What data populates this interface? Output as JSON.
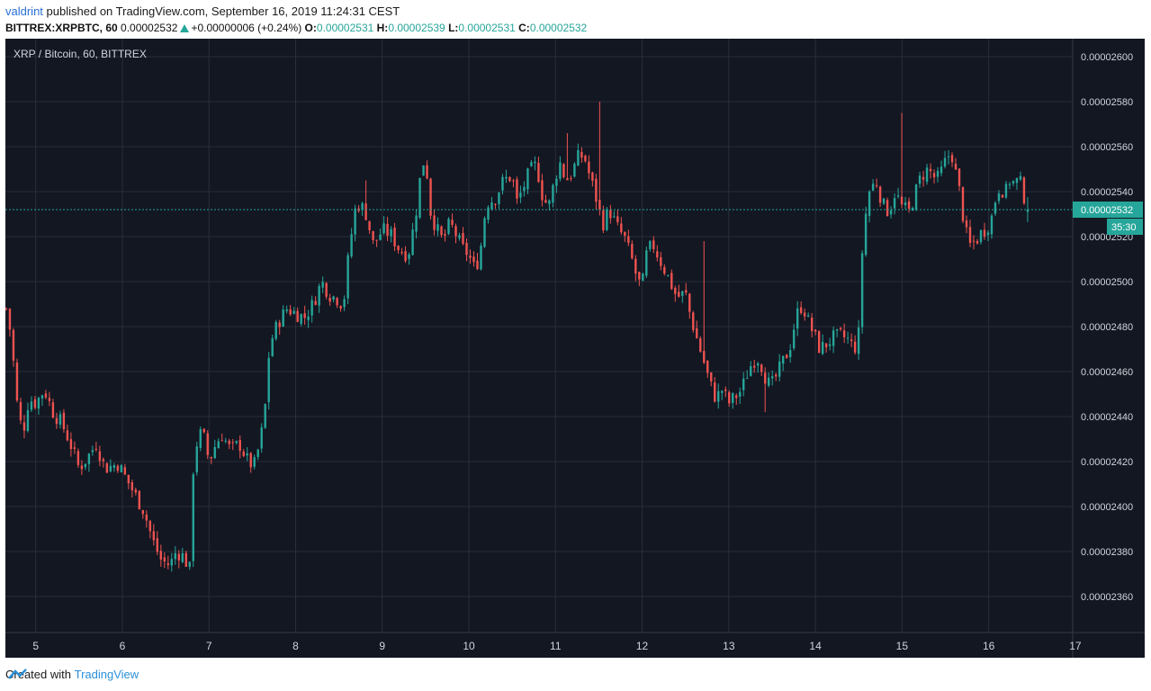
{
  "header": {
    "author": "valdrint",
    "published_text": "published on TradingView.com, September 16, 2019 11:24:31 CEST",
    "symbol_line": "BITTREX:XRPBTC, 60",
    "last_price": "0.00002532",
    "change": "+0.00000006 (+0.24%)",
    "o_label": "O:",
    "o_value": "0.00002531",
    "h_label": "H:",
    "h_value": "0.00002539",
    "l_label": "L:",
    "l_value": "0.00002531",
    "c_label": "C:",
    "c_value": "0.00002532"
  },
  "footer": {
    "prefix": "Created with",
    "brand": "TradingView"
  },
  "colors": {
    "background": "#131722",
    "up": "#26a69a",
    "down": "#ef5350",
    "grid": "#2a2e39",
    "axis_text": "#d1d4dc"
  },
  "chart_data": {
    "type": "candlestick",
    "title": "XRP / Bitcoin, 60, BITTREX",
    "x_ticks": [
      "5",
      "6",
      "7",
      "8",
      "9",
      "10",
      "11",
      "12",
      "13",
      "14",
      "15",
      "16",
      "17"
    ],
    "x_tick_values": [
      5,
      6,
      7,
      8,
      9,
      10,
      11,
      12,
      13,
      14,
      15,
      16,
      17
    ],
    "xlim": [
      4.65,
      16.97
    ],
    "y_ticks": [
      "0.00002360",
      "0.00002380",
      "0.00002400",
      "0.00002420",
      "0.00002440",
      "0.00002460",
      "0.00002480",
      "0.00002500",
      "0.00002520",
      "0.00002540",
      "0.00002560",
      "0.00002580",
      "0.00002600"
    ],
    "y_tick_values": [
      2360,
      2380,
      2400,
      2420,
      2440,
      2460,
      2480,
      2500,
      2520,
      2540,
      2560,
      2580,
      2600
    ],
    "y_unit_note": "values are in units of 1e-8 BTC (satoshi)",
    "ylim": [
      2344,
      2608
    ],
    "current_price": 2532,
    "current_price_label": "0.00002532",
    "countdown_label": "35:30",
    "grid": true,
    "anchors": [
      [
        4.66,
        2488
      ],
      [
        4.72,
        2475
      ],
      [
        4.78,
        2447
      ],
      [
        4.85,
        2432
      ],
      [
        4.92,
        2448
      ],
      [
        5.0,
        2446
      ],
      [
        5.1,
        2452
      ],
      [
        5.2,
        2442
      ],
      [
        5.3,
        2437
      ],
      [
        5.4,
        2428
      ],
      [
        5.5,
        2417
      ],
      [
        5.6,
        2422
      ],
      [
        5.7,
        2428
      ],
      [
        5.8,
        2417
      ],
      [
        5.95,
        2419
      ],
      [
        6.05,
        2412
      ],
      [
        6.15,
        2405
      ],
      [
        6.25,
        2398
      ],
      [
        6.35,
        2385
      ],
      [
        6.45,
        2376
      ],
      [
        6.55,
        2374
      ],
      [
        6.62,
        2380
      ],
      [
        6.7,
        2378
      ],
      [
        6.78,
        2372
      ],
      [
        6.82,
        2418
      ],
      [
        6.88,
        2433
      ],
      [
        6.95,
        2430
      ],
      [
        7.0,
        2420
      ],
      [
        7.08,
        2428
      ],
      [
        7.15,
        2432
      ],
      [
        7.25,
        2425
      ],
      [
        7.35,
        2428
      ],
      [
        7.45,
        2420
      ],
      [
        7.52,
        2418
      ],
      [
        7.58,
        2427
      ],
      [
        7.64,
        2440
      ],
      [
        7.7,
        2472
      ],
      [
        7.8,
        2482
      ],
      [
        7.9,
        2488
      ],
      [
        8.0,
        2486
      ],
      [
        8.1,
        2484
      ],
      [
        8.2,
        2490
      ],
      [
        8.3,
        2500
      ],
      [
        8.4,
        2494
      ],
      [
        8.5,
        2492
      ],
      [
        8.55,
        2489
      ],
      [
        8.62,
        2515
      ],
      [
        8.7,
        2535
      ],
      [
        8.8,
        2532
      ],
      [
        8.9,
        2516
      ],
      [
        9.0,
        2523
      ],
      [
        9.1,
        2521
      ],
      [
        9.2,
        2514
      ],
      [
        9.3,
        2512
      ],
      [
        9.38,
        2528
      ],
      [
        9.45,
        2550
      ],
      [
        9.5,
        2556
      ],
      [
        9.55,
        2532
      ],
      [
        9.62,
        2524
      ],
      [
        9.7,
        2518
      ],
      [
        9.78,
        2526
      ],
      [
        9.85,
        2521
      ],
      [
        9.92,
        2515
      ],
      [
        10.0,
        2512
      ],
      [
        10.05,
        2506
      ],
      [
        10.12,
        2510
      ],
      [
        10.2,
        2535
      ],
      [
        10.3,
        2537
      ],
      [
        10.4,
        2545
      ],
      [
        10.5,
        2547
      ],
      [
        10.55,
        2535
      ],
      [
        10.62,
        2541
      ],
      [
        10.7,
        2549
      ],
      [
        10.78,
        2552
      ],
      [
        10.85,
        2538
      ],
      [
        10.92,
        2533
      ],
      [
        11.0,
        2547
      ],
      [
        11.05,
        2553
      ],
      [
        11.12,
        2545
      ],
      [
        11.2,
        2549
      ],
      [
        11.25,
        2555
      ],
      [
        11.33,
        2556
      ],
      [
        11.4,
        2546
      ],
      [
        11.45,
        2540
      ],
      [
        11.5,
        2532
      ],
      [
        11.55,
        2526
      ],
      [
        11.62,
        2532
      ],
      [
        11.7,
        2525
      ],
      [
        11.8,
        2519
      ],
      [
        11.88,
        2510
      ],
      [
        11.95,
        2500
      ],
      [
        12.0,
        2498
      ],
      [
        12.05,
        2512
      ],
      [
        12.12,
        2517
      ],
      [
        12.2,
        2510
      ],
      [
        12.3,
        2502
      ],
      [
        12.4,
        2493
      ],
      [
        12.5,
        2495
      ],
      [
        12.55,
        2486
      ],
      [
        12.62,
        2476
      ],
      [
        12.7,
        2466
      ],
      [
        12.78,
        2455
      ],
      [
        12.85,
        2448
      ],
      [
        12.92,
        2452
      ],
      [
        13.0,
        2446
      ],
      [
        13.08,
        2449
      ],
      [
        13.15,
        2452
      ],
      [
        13.2,
        2458
      ],
      [
        13.28,
        2465
      ],
      [
        13.35,
        2466
      ],
      [
        13.42,
        2458
      ],
      [
        13.48,
        2453
      ],
      [
        13.55,
        2458
      ],
      [
        13.62,
        2464
      ],
      [
        13.7,
        2470
      ],
      [
        13.78,
        2485
      ],
      [
        13.85,
        2490
      ],
      [
        13.92,
        2482
      ],
      [
        14.0,
        2475
      ],
      [
        14.05,
        2470
      ],
      [
        14.12,
        2472
      ],
      [
        14.2,
        2475
      ],
      [
        14.3,
        2476
      ],
      [
        14.38,
        2474
      ],
      [
        14.45,
        2470
      ],
      [
        14.5,
        2477
      ],
      [
        14.55,
        2522
      ],
      [
        14.62,
        2540
      ],
      [
        14.7,
        2545
      ],
      [
        14.78,
        2534
      ],
      [
        14.85,
        2531
      ],
      [
        14.92,
        2540
      ],
      [
        15.0,
        2533
      ],
      [
        15.08,
        2531
      ],
      [
        15.15,
        2539
      ],
      [
        15.22,
        2547
      ],
      [
        15.3,
        2550
      ],
      [
        15.4,
        2545
      ],
      [
        15.48,
        2551
      ],
      [
        15.52,
        2556
      ],
      [
        15.58,
        2556
      ],
      [
        15.62,
        2548
      ],
      [
        15.68,
        2537
      ],
      [
        15.72,
        2524
      ],
      [
        15.78,
        2516
      ],
      [
        15.85,
        2518
      ],
      [
        15.92,
        2522
      ],
      [
        15.98,
        2524
      ],
      [
        16.05,
        2530
      ],
      [
        16.1,
        2542
      ],
      [
        16.2,
        2540
      ],
      [
        16.25,
        2546
      ],
      [
        16.3,
        2543
      ],
      [
        16.35,
        2546
      ],
      [
        16.45,
        2532
      ]
    ],
    "spikes": [
      [
        0,
        2488,
        2474
      ],
      [
        33,
        2420,
        2444
      ],
      [
        48,
        2545,
        2528
      ],
      [
        78,
        2566,
        2545
      ],
      [
        84,
        2580,
        2560
      ],
      [
        100,
        2518,
        2500
      ],
      [
        110,
        2442,
        2434
      ],
      [
        132,
        2575,
        2548
      ]
    ]
  }
}
